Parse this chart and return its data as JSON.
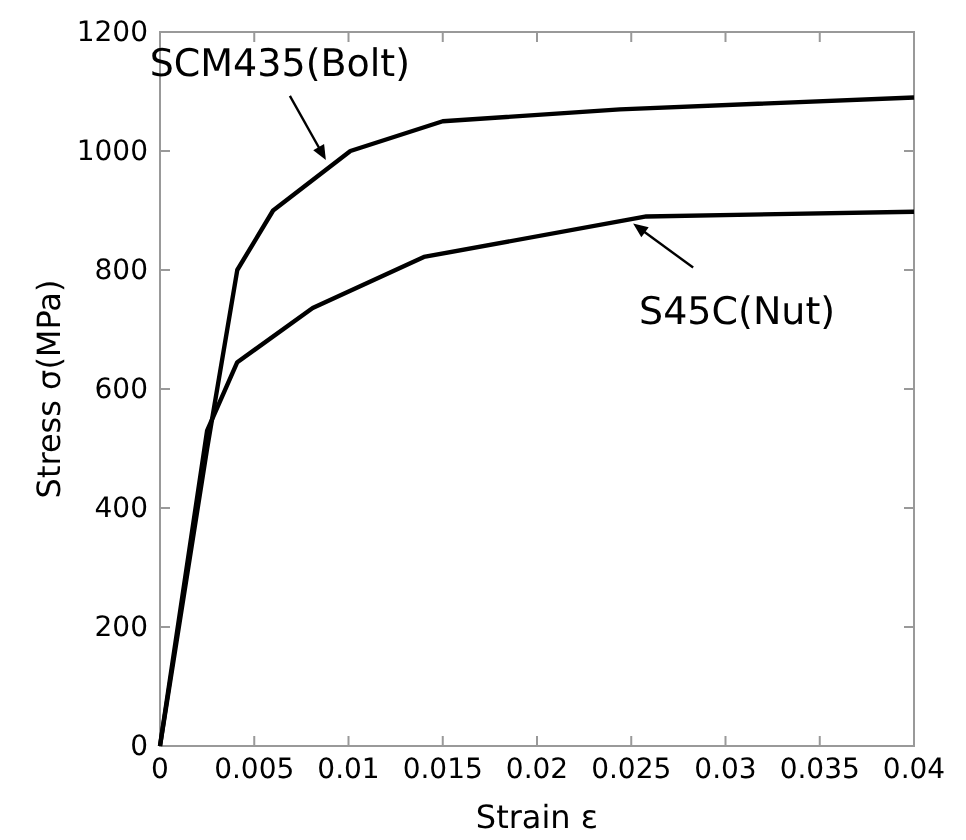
{
  "chart_data": {
    "type": "line",
    "xlabel": "Strain ε",
    "ylabel": "Stress σ(MPa)",
    "xlim": [
      0,
      0.04
    ],
    "ylim": [
      0,
      1200
    ],
    "xticks": [
      0,
      0.005,
      0.01,
      0.015,
      0.02,
      0.025,
      0.03,
      0.035,
      0.04
    ],
    "yticks": [
      0,
      200,
      400,
      600,
      800,
      1000,
      1200
    ],
    "grid": false,
    "marker": "none",
    "line_style": "solid",
    "series": [
      {
        "color": "#000000",
        "x": [
          0,
          0.0025,
          0.0041,
          0.006,
          0.0101,
          0.015,
          0.0244,
          0.04
        ],
        "values": [
          0,
          500,
          800,
          900,
          1000,
          1050,
          1070,
          1090
        ]
      },
      {
        "color": "#000000",
        "x": [
          0,
          0.0025,
          0.0041,
          0.0081,
          0.014,
          0.0258,
          0.04
        ],
        "values": [
          0,
          530,
          645,
          736,
          822,
          890,
          898
        ]
      }
    ],
    "annotations": [
      {
        "text": "SCM435(Bolt)",
        "x": 0.0088,
        "y": 985
      },
      {
        "text": "S45C(Nut)",
        "x": 0.0251,
        "y": 878
      }
    ]
  }
}
